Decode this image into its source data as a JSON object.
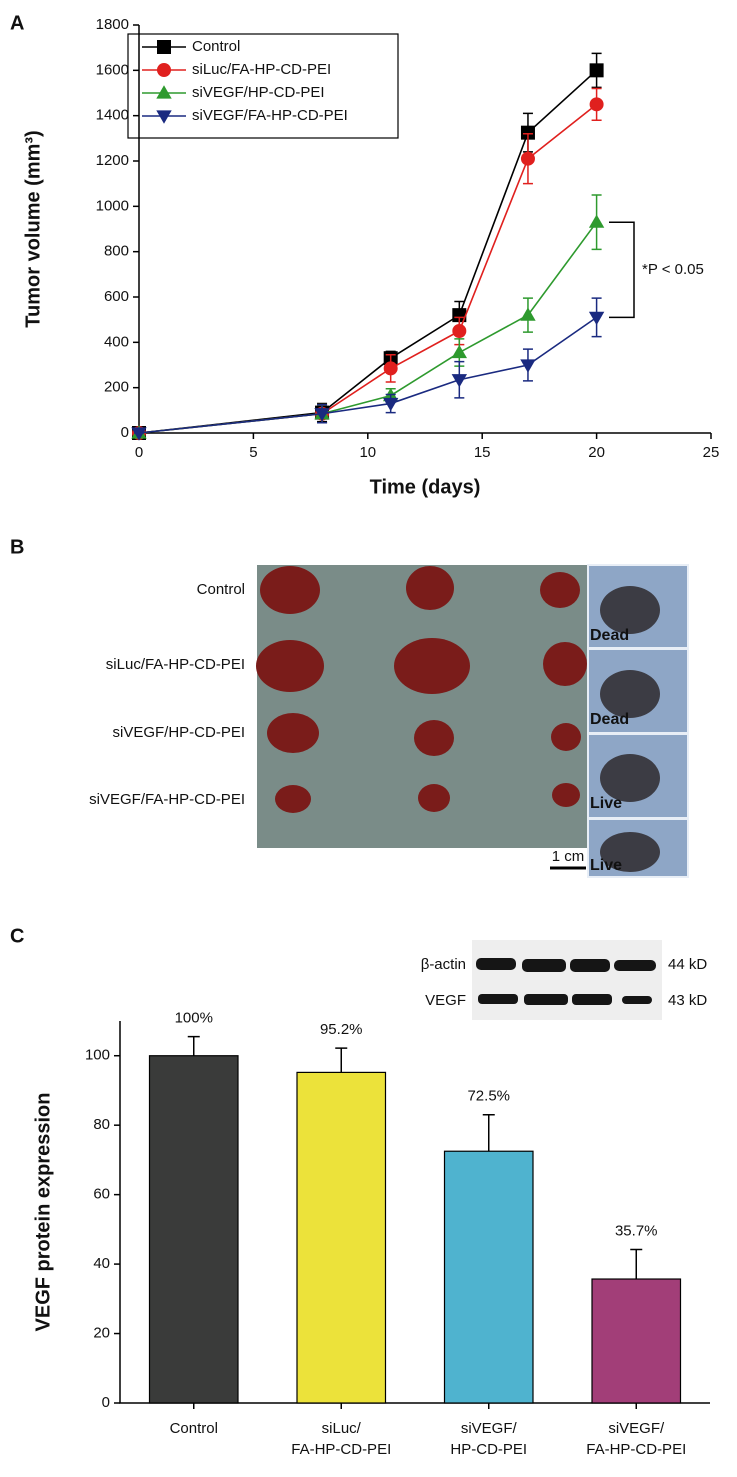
{
  "chart_data": [
    {
      "type": "line",
      "panel_label": "A",
      "xlabel": "Time (days)",
      "ylabel": "Tumor volume (mm³)",
      "x": [
        0,
        8,
        11,
        14,
        17,
        20
      ],
      "series": [
        {
          "name": "Control",
          "color": "#000000",
          "marker": "square",
          "values": [
            0,
            90,
            330,
            520,
            1325,
            1600
          ],
          "errors": [
            0,
            40,
            30,
            60,
            85,
            75
          ]
        },
        {
          "name": "siLuc/FA-HP-CD-PEI",
          "color": "#e0201e",
          "marker": "circle",
          "values": [
            0,
            85,
            285,
            450,
            1210,
            1450
          ],
          "errors": [
            0,
            40,
            60,
            60,
            110,
            70
          ]
        },
        {
          "name": "siVEGF/HP-CD-PEI",
          "color": "#2e9a2e",
          "marker": "triangle-up",
          "values": [
            0,
            85,
            165,
            355,
            520,
            930
          ],
          "errors": [
            0,
            40,
            30,
            60,
            75,
            120
          ]
        },
        {
          "name": "siVEGF/FA-HP-CD-PEI",
          "color": "#1a2a80",
          "marker": "triangle-down",
          "values": [
            0,
            85,
            130,
            235,
            300,
            510
          ],
          "errors": [
            0,
            40,
            40,
            80,
            70,
            85
          ]
        }
      ],
      "xlim": [
        0,
        25
      ],
      "xticks": [
        0,
        5,
        10,
        15,
        20,
        25
      ],
      "ylim": [
        0,
        1800
      ],
      "yticks": [
        0,
        200,
        400,
        600,
        800,
        1000,
        1200,
        1400,
        1600,
        1800
      ],
      "legend": "upper left",
      "annotation": "*P < 0.05"
    },
    {
      "type": "bar",
      "panel_label": "C",
      "ylabel": "VEGF protein expression",
      "categories": [
        [
          "Control"
        ],
        [
          "siLuc/",
          "FA-HP-CD-PEI"
        ],
        [
          "siVEGF/",
          "HP-CD-PEI"
        ],
        [
          "siVEGF/",
          "FA-HP-CD-PEI"
        ]
      ],
      "values": [
        100,
        95.2,
        72.5,
        35.7
      ],
      "value_labels": [
        "100%",
        "95.2%",
        "72.5%",
        "35.7%"
      ],
      "errors": [
        5.5,
        7,
        10.5,
        8.5
      ],
      "colors": [
        "#3a3b3a",
        "#ece23a",
        "#4fb3cf",
        "#a23e78"
      ],
      "ylim": [
        0,
        110
      ],
      "yticks": [
        0,
        20,
        40,
        60,
        80,
        100
      ],
      "blot": {
        "bands": [
          "β-actin",
          "VEGF"
        ],
        "sizes": [
          "44 kD",
          "43 kD"
        ]
      }
    }
  ],
  "photo_panel": {
    "panel_label": "B",
    "rows": [
      {
        "label": "Control",
        "status": "Dead"
      },
      {
        "label": "siLuc/FA-HP-CD-PEI",
        "status": "Dead"
      },
      {
        "label": "siVEGF/HP-CD-PEI",
        "status": "Live"
      },
      {
        "label": "siVEGF/FA-HP-CD-PEI",
        "status": "Live"
      }
    ],
    "scale_bar": "1 cm"
  }
}
